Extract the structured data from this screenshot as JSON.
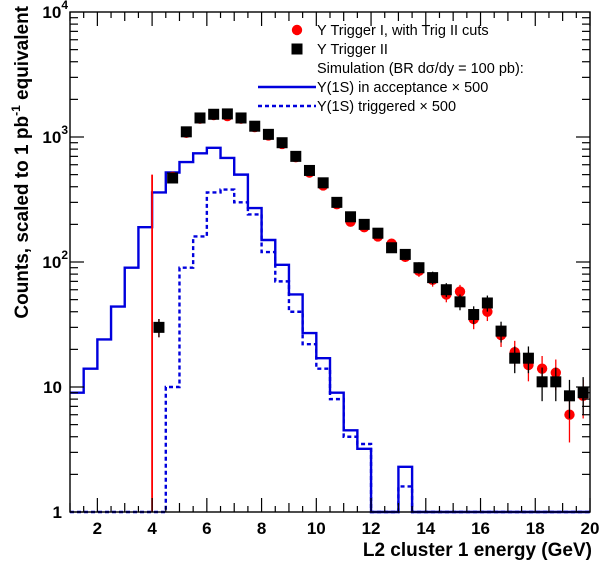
{
  "chart_data": {
    "type": "scatter",
    "xlabel": "L2 cluster 1 energy (GeV)",
    "ylabel": "Counts, scaled to 1 pb⁻¹ equivalent",
    "xlim": [
      1,
      20
    ],
    "ylim": [
      1,
      10000
    ],
    "yscale": "log",
    "grid": false,
    "legend_position": "top-right",
    "x_ticks": [
      2,
      4,
      6,
      8,
      10,
      12,
      14,
      16,
      18,
      20
    ],
    "y_ticks": [
      {
        "value": 1,
        "label": "1"
      },
      {
        "value": 10,
        "label": "10"
      },
      {
        "value": 100,
        "label": "10",
        "exp": "2"
      },
      {
        "value": 1000,
        "label": "10",
        "exp": "3"
      },
      {
        "value": 10000,
        "label": "10",
        "exp": "4"
      }
    ],
    "threshold_line": {
      "x": 4.0,
      "y_top": 500,
      "color": "#ff0000"
    },
    "legend": [
      {
        "label": "Υ Trigger I, with Trig II cuts",
        "marker": "circle",
        "color": "#ff0000"
      },
      {
        "label": "Υ Trigger II",
        "marker": "square",
        "color": "#000000"
      },
      {
        "label": "Simulation (BR dσ/dy = 100 pb):",
        "marker": "none",
        "color": "#000000"
      },
      {
        "label": "Υ(1S) in acceptance × 500",
        "marker": "solid-line",
        "color": "#0000dd"
      },
      {
        "label": "Υ(1S) triggered × 500",
        "marker": "dashed-line",
        "color": "#0000dd"
      }
    ],
    "series": [
      {
        "name": "Υ Trigger I, with Trig II cuts",
        "kind": "points",
        "marker": "circle",
        "color": "#ff0000",
        "x": [
          4.25,
          4.75,
          5.25,
          5.75,
          6.25,
          6.75,
          7.25,
          7.75,
          8.25,
          8.75,
          9.25,
          9.75,
          10.25,
          10.75,
          11.25,
          11.75,
          12.25,
          12.75,
          13.25,
          13.75,
          14.25,
          14.75,
          15.25,
          15.75,
          16.25,
          16.75,
          17.25,
          17.75,
          18.25,
          18.75,
          19.25,
          19.75
        ],
        "y": [
          30,
          480,
          1080,
          1400,
          1500,
          1470,
          1400,
          1200,
          1030,
          880,
          690,
          520,
          410,
          290,
          210,
          190,
          160,
          140,
          110,
          85,
          72,
          55,
          58,
          35,
          40,
          26,
          19,
          15,
          14,
          13,
          6,
          8.5
        ],
        "yerr": [
          5,
          22,
          33,
          37,
          39,
          38,
          37,
          35,
          32,
          30,
          26,
          23,
          20,
          17,
          14,
          14,
          13,
          12,
          10,
          9,
          8.5,
          7.4,
          7.6,
          6,
          6.3,
          5.1,
          4.4,
          3.9,
          3.7,
          3.6,
          2.4,
          2.9
        ]
      },
      {
        "name": "Υ Trigger II",
        "kind": "points",
        "marker": "square",
        "color": "#000000",
        "x": [
          4.25,
          4.75,
          5.25,
          5.75,
          6.25,
          6.75,
          7.25,
          7.75,
          8.25,
          8.75,
          9.25,
          9.75,
          10.25,
          10.75,
          11.25,
          11.75,
          12.25,
          12.75,
          13.25,
          13.75,
          14.25,
          14.75,
          15.25,
          15.75,
          16.25,
          16.75,
          17.25,
          17.75,
          18.25,
          18.75,
          19.25,
          19.75
        ],
        "y": [
          30,
          470,
          1100,
          1420,
          1520,
          1530,
          1420,
          1220,
          1050,
          900,
          700,
          540,
          430,
          300,
          230,
          200,
          170,
          130,
          115,
          90,
          75,
          60,
          48,
          38,
          47,
          28,
          17,
          17,
          11,
          11,
          8.5,
          9
        ],
        "yerr": [
          5,
          22,
          33,
          38,
          39,
          39,
          38,
          35,
          32,
          30,
          26,
          23,
          21,
          17,
          15,
          14,
          13,
          11,
          11,
          9.5,
          8.7,
          7.7,
          6.9,
          6.2,
          6.9,
          5.3,
          4.1,
          4.1,
          3.3,
          3.3,
          2.9,
          3
        ]
      },
      {
        "name": "Υ(1S) in acceptance × 500",
        "kind": "step",
        "style": "solid",
        "color": "#0000dd",
        "edges": [
          1,
          1.5,
          2,
          2.5,
          3,
          3.5,
          4,
          4.5,
          5,
          5.5,
          6,
          6.5,
          7,
          7.5,
          8,
          8.5,
          9,
          9.5,
          10,
          10.5,
          11,
          11.5,
          12,
          12.5,
          13,
          13.5,
          14,
          14.5,
          15,
          15.5,
          16,
          16.5,
          17,
          17.5,
          18,
          18.5,
          19,
          19.5,
          20
        ],
        "values": [
          9,
          14,
          24,
          44,
          90,
          190,
          360,
          520,
          630,
          740,
          820,
          680,
          500,
          270,
          150,
          95,
          55,
          27,
          17,
          9,
          4.5,
          3.2,
          1,
          1,
          2.3,
          1,
          1,
          1,
          1,
          1,
          1,
          1,
          1,
          1,
          1,
          1,
          1,
          1
        ]
      },
      {
        "name": "Υ(1S) triggered × 500",
        "kind": "step",
        "style": "dashed",
        "color": "#0000dd",
        "edges": [
          1,
          1.5,
          2,
          2.5,
          3,
          3.5,
          4,
          4.5,
          5,
          5.5,
          6,
          6.5,
          7,
          7.5,
          8,
          8.5,
          9,
          9.5,
          10,
          10.5,
          11,
          11.5,
          12,
          12.5,
          13,
          13.5,
          14,
          14.5,
          15,
          15.5,
          16,
          16.5,
          17,
          17.5,
          18,
          18.5,
          19,
          19.5,
          20
        ],
        "values": [
          1,
          1,
          1,
          1,
          1,
          1,
          1,
          10,
          90,
          160,
          360,
          380,
          300,
          240,
          120,
          70,
          40,
          22,
          14,
          8,
          4,
          3.5,
          1,
          1,
          1.6,
          1,
          1,
          1,
          1,
          1,
          1,
          1,
          1,
          1,
          1,
          1,
          1,
          1
        ]
      }
    ]
  }
}
